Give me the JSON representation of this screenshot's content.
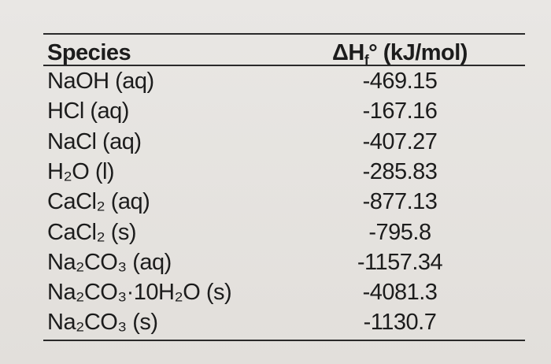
{
  "table": {
    "header": {
      "species": "Species",
      "enthalpy": [
        "ΔH",
        "f",
        "° (kJ/mol)"
      ]
    },
    "rows": [
      [
        "NaOH (aq)",
        -469.15
      ],
      [
        "HCl (aq)",
        -167.16
      ],
      [
        "NaCl (aq)",
        -407.27
      ],
      [
        "H₂O (l)",
        -285.83
      ],
      [
        "CaCl₂ (aq)",
        -877.13
      ],
      [
        "CaCl₂ (s)",
        -795.8
      ],
      [
        "Na₂CO₃ (aq)",
        -1157.34
      ],
      [
        "Na₂CO₃·10H₂O (s)",
        -4081.3
      ],
      [
        "Na₂CO₃ (s)",
        -1130.7
      ]
    ]
  }
}
